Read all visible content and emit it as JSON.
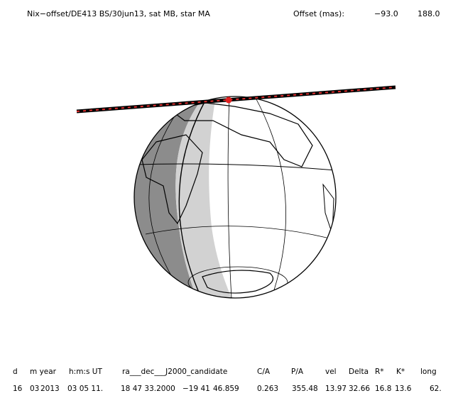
{
  "header": {
    "title": "Nix−offset/DE413 BS/30jun13, sat MB, star MA",
    "offset_label": "Offset (mas):",
    "offset": [
      "−93.0",
      "188.0"
    ]
  },
  "table": {
    "columns": [
      "d",
      "m year",
      "",
      "h:m:s UT",
      "ra___dec___J2000_candidate",
      "C/A",
      "P/A",
      "vel",
      "Delta",
      "R*",
      "K*",
      "long"
    ],
    "row": [
      "16",
      "03",
      "2013",
      "03 05 11.",
      "18 47 33.2000",
      "−19 41",
      "46.859",
      "0.263",
      "355.48",
      "13.97",
      "32.66",
      "16.8",
      "13.6",
      "62."
    ]
  }
}
